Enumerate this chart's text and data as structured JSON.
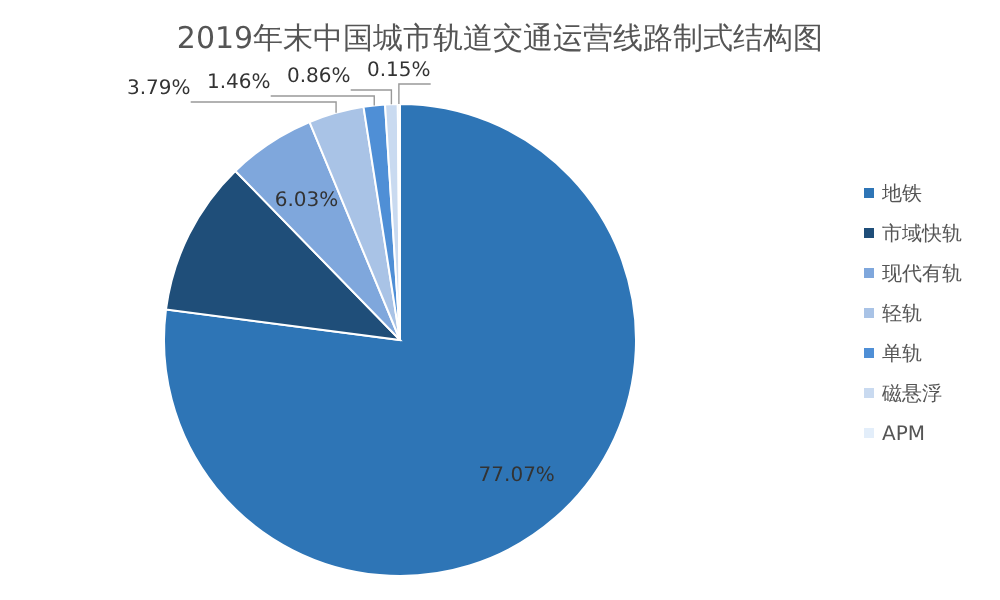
{
  "chart_data": {
    "type": "pie",
    "title": "2019年末中国城市轨道交通运营线路制式结构图",
    "categories": [
      "地铁",
      "市域快轨",
      "现代有轨",
      "轻轨",
      "单轨",
      "磁悬浮",
      "APM"
    ],
    "values": [
      77.07,
      10.64,
      6.03,
      3.79,
      1.46,
      0.86,
      0.15
    ],
    "value_labels": [
      "77.07%",
      null,
      "6.03%",
      "3.79%",
      "1.46%",
      "0.86%",
      "0.15%"
    ],
    "colors": [
      "#2e75b6",
      "#1f4e79",
      "#7fa7dc",
      "#a9c3e6",
      "#4f8fd6",
      "#c9daf0",
      "#e3eefa"
    ],
    "legend": "right"
  }
}
